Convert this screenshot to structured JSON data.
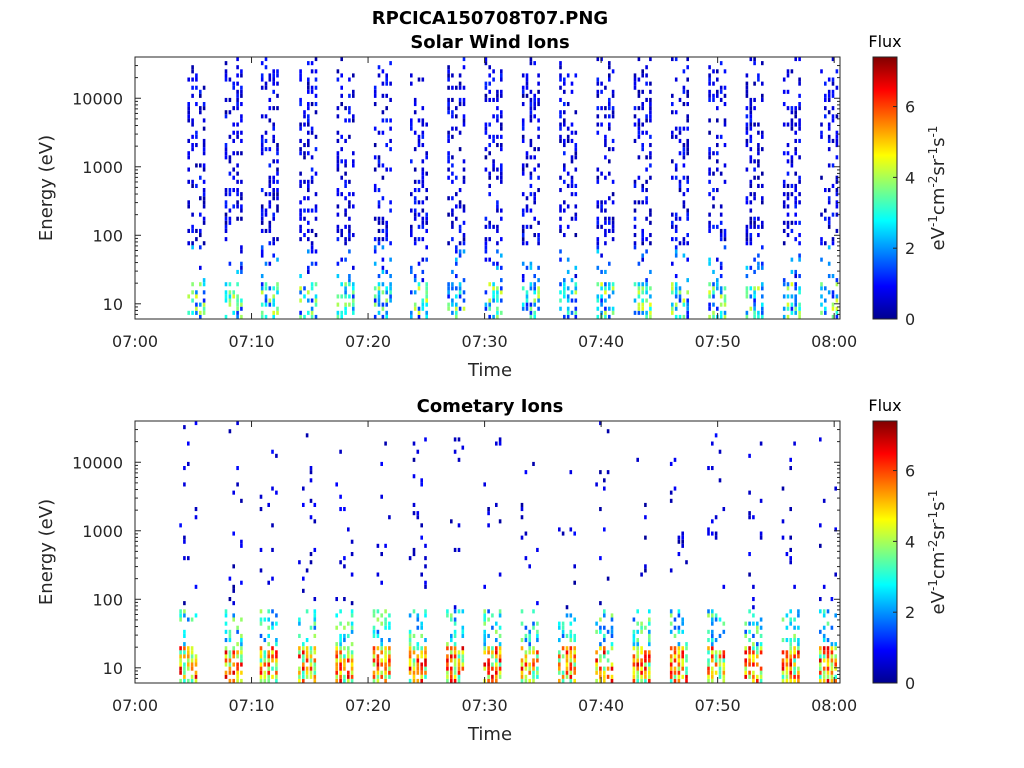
{
  "figure": {
    "title": "RPCICA150708T07.PNG"
  },
  "chart_data": [
    {
      "type": "heatmap",
      "title": "Solar Wind Ions",
      "xlabel": "Time",
      "ylabel": "Energy (eV)",
      "x_tick_labels": [
        "07:00",
        "07:10",
        "07:20",
        "07:30",
        "07:40",
        "07:50",
        "08:00"
      ],
      "y_tick_labels": [
        "10",
        "100",
        "1000",
        "10000"
      ],
      "y_ticks": [
        10,
        100,
        1000,
        10000
      ],
      "y_scale": "log",
      "ylim": [
        6,
        40000
      ],
      "xlim_minutes": [
        0,
        60.5
      ],
      "colorbar": {
        "label": "Flux",
        "unit": "eV-1cm-2sr-1s-1",
        "ticks": [
          "0",
          "2",
          "4",
          "6"
        ],
        "range": [
          0,
          7.4
        ]
      },
      "scan_starts_minutes": [
        4.5,
        7.7,
        10.8,
        14.1,
        17.3,
        20.5,
        23.6,
        26.8,
        30.0,
        33.2,
        36.4,
        39.6,
        42.8,
        46.0,
        49.2,
        52.4,
        55.6,
        58.8
      ],
      "low_energy_flux_range": [
        1.0,
        4.5
      ],
      "high_energy_flux_range": [
        0.2,
        1.2
      ],
      "colormap": "jet"
    },
    {
      "type": "heatmap",
      "title": "Cometary Ions",
      "xlabel": "Time",
      "ylabel": "Energy (eV)",
      "x_tick_labels": [
        "07:00",
        "07:10",
        "07:20",
        "07:30",
        "07:40",
        "07:50",
        "08:00"
      ],
      "y_tick_labels": [
        "10",
        "100",
        "1000",
        "10000"
      ],
      "y_ticks": [
        10,
        100,
        1000,
        10000
      ],
      "y_scale": "log",
      "ylim": [
        6,
        40000
      ],
      "xlim_minutes": [
        0,
        60.5
      ],
      "colorbar": {
        "label": "Flux",
        "unit": "eV-1cm-2sr-1s-1",
        "ticks": [
          "0",
          "2",
          "4",
          "6"
        ],
        "range": [
          0,
          7.4
        ]
      },
      "scan_starts_minutes": [
        3.8,
        7.7,
        10.7,
        14.0,
        17.2,
        20.4,
        23.5,
        26.7,
        29.9,
        33.1,
        36.3,
        39.5,
        42.7,
        45.9,
        49.1,
        52.3,
        55.5,
        58.7
      ],
      "low_energy_flux_range": [
        3.0,
        6.8
      ],
      "high_energy_flux_range": [
        0.2,
        1.0
      ],
      "colormap": "jet"
    }
  ]
}
